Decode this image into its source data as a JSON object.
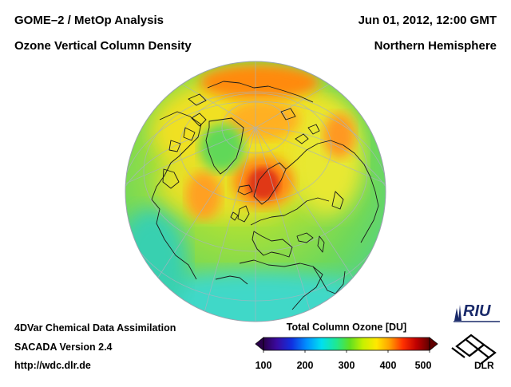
{
  "header": {
    "title_left_1": "GOME–2 / MetOp Analysis",
    "title_left_2": "Ozone Vertical Column Density",
    "title_right_1": "Jun 01, 2012, 12:00 GMT",
    "title_right_2": "Northern Hemisphere"
  },
  "footer": {
    "line1": "4DVar Chemical Data Assimilation",
    "line2": "SACADA Version 2.4",
    "line3": "http://wdc.dlr.de"
  },
  "colorbar": {
    "title": "Total Column Ozone [DU]",
    "ticks": [
      "100",
      "200",
      "300",
      "400",
      "500"
    ],
    "range": [
      100,
      500
    ],
    "colors": [
      "#2a004a",
      "#3a0aa0",
      "#1030e0",
      "#0090ff",
      "#00e0f0",
      "#20e890",
      "#60e020",
      "#c8f000",
      "#ffe800",
      "#ffa000",
      "#ff3000",
      "#c00000",
      "#600000"
    ]
  },
  "logos": {
    "riu": "RIU",
    "dlr": "DLR"
  },
  "map": {
    "background_color": "#7ddc4e",
    "high_color": "#ff6a00",
    "peak_color": "#d42a10"
  }
}
